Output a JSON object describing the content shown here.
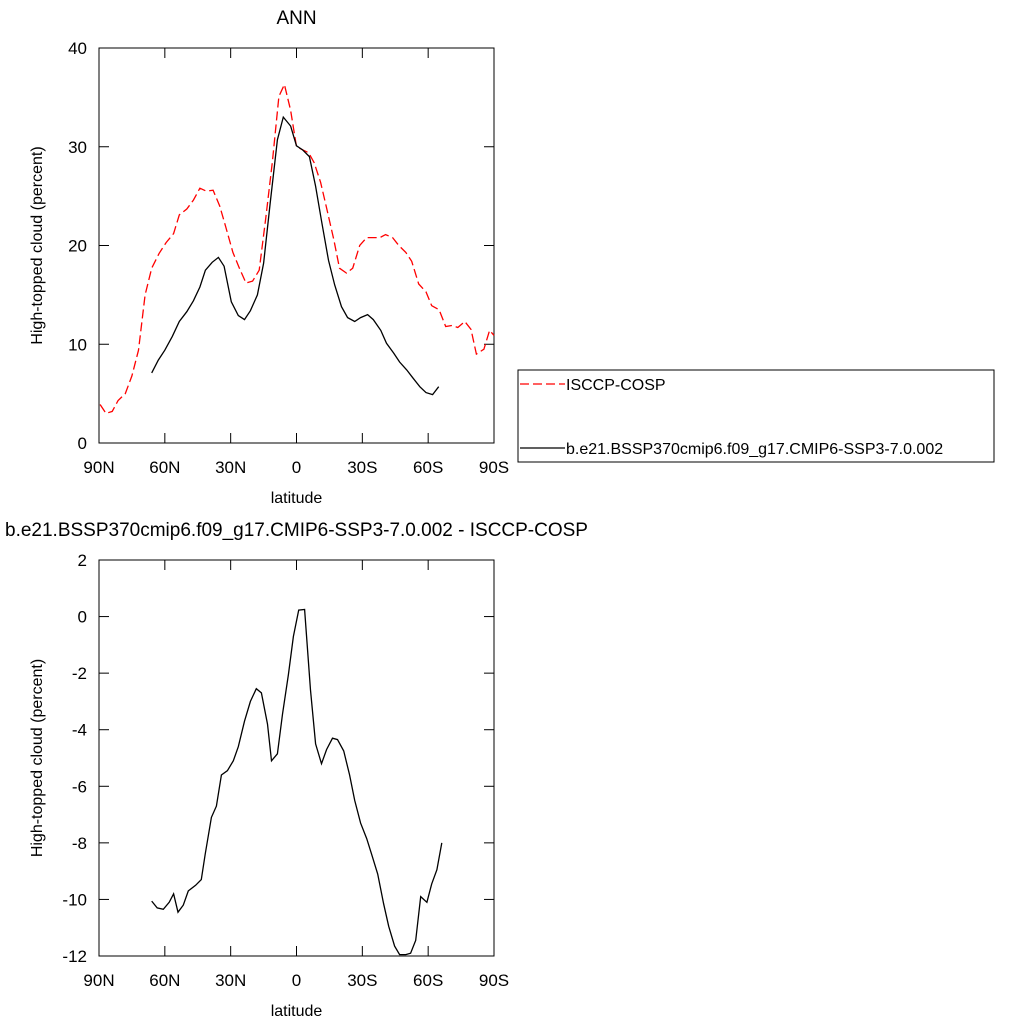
{
  "chart_data": [
    {
      "type": "line",
      "title": "ANN",
      "xlabel": "latitude",
      "ylabel": "High-topped cloud (percent)",
      "xlim": [
        90,
        -90
      ],
      "xticks": [
        {
          "value": 90,
          "label": "90N"
        },
        {
          "value": 60,
          "label": "60N"
        },
        {
          "value": 30,
          "label": "30N"
        },
        0,
        {
          "value": -30,
          "label": "30S"
        },
        {
          "value": -60,
          "label": "60S"
        },
        {
          "value": -90,
          "label": "90S"
        }
      ],
      "ylim": [
        0,
        40
      ],
      "yticks": [
        0,
        10,
        20,
        30,
        40
      ],
      "legend": "right",
      "series": [
        {
          "name": "ISCCP-COSP",
          "color": "#ff0000",
          "dash": "dashed",
          "x": [
            89.5,
            86.8,
            84,
            81.3,
            78,
            75,
            72,
            69,
            66,
            62.6,
            59.4,
            56,
            53.4,
            50,
            47,
            44,
            41,
            38,
            35,
            32.4,
            29,
            26,
            23,
            20,
            17,
            14,
            11,
            8,
            5.5,
            2.7,
            0,
            -2.7,
            -5.5,
            -8,
            -11,
            -13.7,
            -17,
            -19.6,
            -22.8,
            -25.6,
            -28.8,
            -32,
            -34.7,
            -38,
            -40.6,
            -43.8,
            -46.6,
            -49.8,
            -52.5,
            -55.7,
            -59,
            -61.6,
            -65,
            -68,
            -70.8,
            -73.5,
            -76.7,
            -79.5,
            -82,
            -85.4,
            -88,
            -90
          ],
          "values": [
            3.9,
            3.0,
            3.2,
            4.3,
            5.0,
            6.8,
            9.4,
            15,
            17.7,
            19.2,
            20.3,
            21.2,
            23.1,
            23.7,
            24.6,
            25.8,
            25.5,
            25.6,
            24,
            22,
            19.3,
            17.7,
            16.2,
            16.4,
            17.5,
            22.8,
            28.5,
            35.1,
            36.3,
            33.7,
            30,
            29.7,
            29.4,
            28.4,
            26.4,
            23.8,
            20.6,
            17.7,
            17.2,
            17.7,
            20,
            20.8,
            20.8,
            20.8,
            21.1,
            20.8,
            20,
            19.3,
            18.4,
            16.1,
            15.3,
            13.9,
            13.5,
            11.8,
            11.9,
            11.7,
            12.3,
            11.5,
            9,
            9.5,
            11.4,
            10.9
          ]
        },
        {
          "name": "b.e21.BSSP370cmip6.f09_g17.CMIP6-SSP3-7.0.002",
          "color": "#000000",
          "dash": "solid",
          "x": [
            66,
            63,
            60,
            56.6,
            53.4,
            50,
            47,
            44,
            41.5,
            38.4,
            35.6,
            33,
            29.7,
            26.5,
            23.7,
            21,
            17.8,
            15,
            12,
            8.7,
            6,
            2.7,
            0,
            -2.7,
            -5.9,
            -8.7,
            -11.4,
            -14.6,
            -17.4,
            -20.5,
            -23.3,
            -26.5,
            -29.2,
            -32.4,
            -35,
            -38.4,
            -41,
            -44.3,
            -47,
            -50.2,
            -53,
            -56.2,
            -59,
            -62,
            -64.8
          ],
          "values": [
            7.1,
            8.4,
            9.4,
            10.8,
            12.3,
            13.3,
            14.4,
            15.8,
            17.5,
            18.3,
            18.8,
            17.9,
            14.3,
            12.9,
            12.5,
            13.4,
            15,
            18.2,
            24.3,
            30.7,
            33,
            32.1,
            30.1,
            29.7,
            29,
            26,
            22.5,
            18.5,
            16,
            13.8,
            12.7,
            12.3,
            12.7,
            13,
            12.5,
            11.4,
            10.1,
            9.1,
            8.2,
            7.4,
            6.6,
            5.7,
            5.1,
            4.9,
            5.7
          ]
        }
      ]
    },
    {
      "type": "line",
      "title": "b.e21.BSSP370cmip6.f09_g17.CMIP6-SSP3-7.0.002 - ISCCP-COSP",
      "xlabel": "latitude",
      "ylabel": "High-topped cloud (percent)",
      "xlim": [
        90,
        -90
      ],
      "xticks": [
        {
          "value": 90,
          "label": "90N"
        },
        {
          "value": 60,
          "label": "60N"
        },
        {
          "value": 30,
          "label": "30N"
        },
        0,
        {
          "value": -30,
          "label": "30S"
        },
        {
          "value": -60,
          "label": "60S"
        },
        {
          "value": -90,
          "label": "90S"
        }
      ],
      "ylim": [
        -12,
        2
      ],
      "yticks": [
        -12,
        -10,
        -8,
        -6,
        -4,
        -2,
        0,
        2
      ],
      "series": [
        {
          "color": "#000000",
          "dash": "solid",
          "x": [
            66,
            63.5,
            60.7,
            58,
            56,
            54,
            51.6,
            49.3,
            46,
            43.4,
            41.6,
            38.8,
            36.5,
            34.2,
            31.5,
            28.8,
            26.5,
            23.7,
            21,
            18.3,
            16,
            13.2,
            11.4,
            8.7,
            6.4,
            3.7,
            1.4,
            -1,
            -3.7,
            -6.4,
            -8.7,
            -11.4,
            -13.7,
            -16.4,
            -18.7,
            -21.5,
            -24.2,
            -26.5,
            -29.2,
            -32,
            -34.2,
            -37,
            -39.7,
            -42,
            -44.7,
            -47,
            -49.8,
            -52,
            -54.3,
            -56.6,
            -59.4,
            -61.6,
            -64,
            -66.2
          ],
          "values": [
            -10.06,
            -10.3,
            -10.35,
            -10.1,
            -9.8,
            -10.45,
            -10.2,
            -9.7,
            -9.5,
            -9.3,
            -8.4,
            -7.1,
            -6.7,
            -5.6,
            -5.45,
            -5.1,
            -4.6,
            -3.7,
            -3.0,
            -2.55,
            -2.7,
            -3.8,
            -5.1,
            -4.85,
            -3.45,
            -2.05,
            -0.7,
            0.23,
            0.25,
            -2.6,
            -4.5,
            -5.2,
            -4.7,
            -4.3,
            -4.35,
            -4.75,
            -5.6,
            -6.5,
            -7.3,
            -7.85,
            -8.4,
            -9.1,
            -10.15,
            -10.95,
            -11.65,
            -11.95,
            -11.95,
            -11.9,
            -11.45,
            -9.9,
            -10.1,
            -9.45,
            -8.95,
            -8.0
          ]
        }
      ]
    }
  ]
}
